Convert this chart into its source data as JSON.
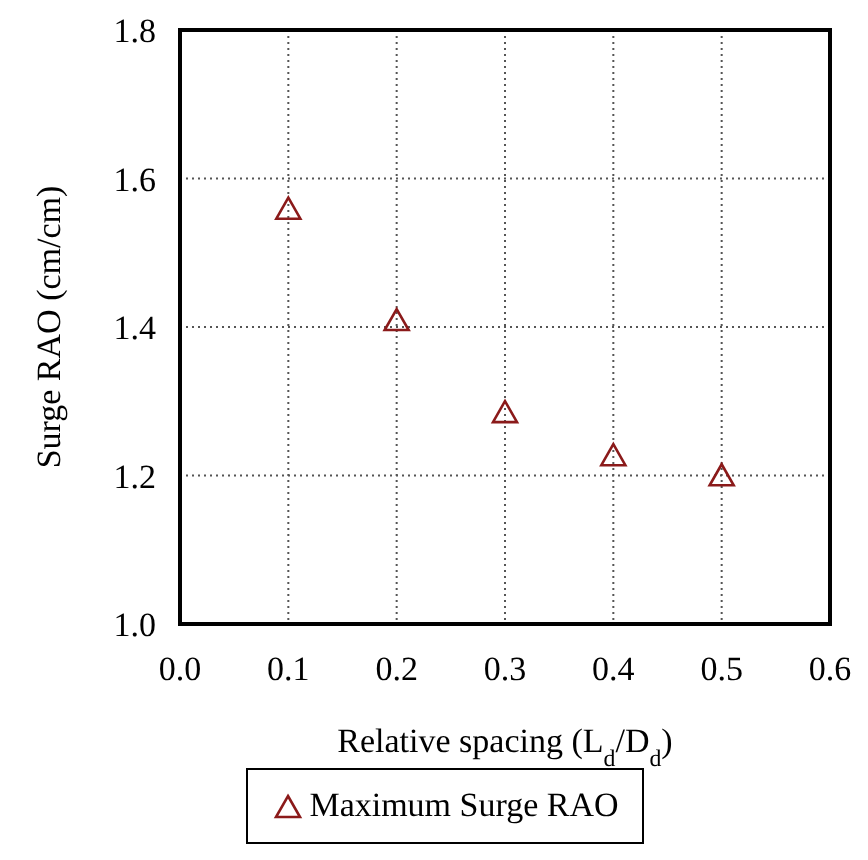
{
  "chart_data": {
    "type": "scatter",
    "xlabel": "Relative spacing  (L$_{d}$/D$_{d}$)",
    "ylabel": "Surge RAO (cm/cm)",
    "x": [
      0.1,
      0.2,
      0.3,
      0.4,
      0.5
    ],
    "series": [
      {
        "name": "Maximum Surge RAO",
        "color": "#8b1a1a",
        "values": [
          1.558,
          1.408,
          1.284,
          1.226,
          1.199
        ]
      }
    ],
    "xlim": [
      0,
      0.6
    ],
    "xticks": [
      {
        "value": 0,
        "label": "0.0"
      },
      0.1,
      0.2,
      0.3,
      0.4,
      0.5,
      0.6
    ],
    "ylim": [
      1,
      1.8
    ],
    "yticks": [
      {
        "value": 1,
        "label": "1.0"
      },
      1.2,
      1.4,
      1.6,
      1.8
    ],
    "grid": true,
    "marker": "triangle",
    "legend": "bottom"
  }
}
